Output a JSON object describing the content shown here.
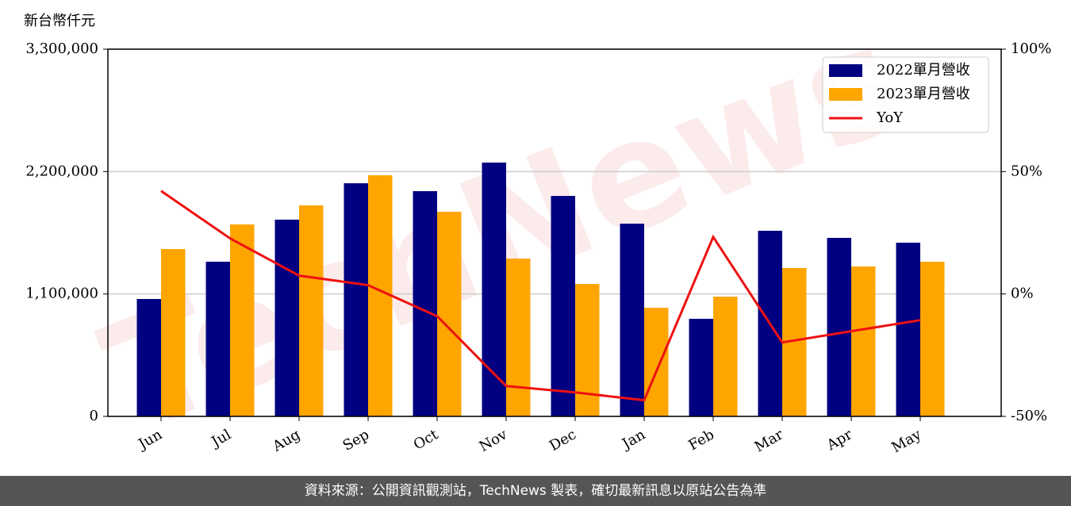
{
  "chart_data": {
    "type": "bar-line",
    "ylabel": "新台幣仟元",
    "watermark": "TechNews",
    "categories": [
      "Jun",
      "Jul",
      "Aug",
      "Sep",
      "Oct",
      "Nov",
      "Dec",
      "Jan",
      "Feb",
      "Mar",
      "Apr",
      "May"
    ],
    "series": [
      {
        "name": "2022單月營收",
        "color": "#000080",
        "type": "bar",
        "values": [
          1055000,
          1390000,
          1768000,
          2095000,
          2024000,
          2281000,
          1981000,
          1732000,
          877000,
          1668000,
          1604000,
          1561000
        ]
      },
      {
        "name": "2023單月營收",
        "color": "#ffa500",
        "type": "bar",
        "values": [
          1504000,
          1725000,
          1896000,
          2167000,
          1839000,
          1418000,
          1190000,
          976000,
          1076000,
          1333000,
          1347000,
          1390000
        ]
      },
      {
        "name": "YoY",
        "color": "#ee1111",
        "type": "line",
        "axis": "y2",
        "values": [
          42.1,
          22.7,
          7.5,
          3.6,
          -9.1,
          -37.6,
          -40.2,
          -43.4,
          23.3,
          -19.8,
          -15.2,
          -10.7
        ]
      }
    ],
    "ylim": [
      0,
      3300000
    ],
    "yticks": [
      0,
      {
        "value": 1100000,
        "label": "1,100,000"
      },
      {
        "value": 2200000,
        "label": "2,200,000"
      },
      {
        "value": 3300000,
        "label": "3,300,000"
      }
    ],
    "y2lim": [
      -50,
      100
    ],
    "y2ticks": [
      {
        "value": -50,
        "label": "-50%"
      },
      {
        "value": 0,
        "label": "0%"
      },
      {
        "value": 50,
        "label": "50%"
      },
      {
        "value": 100,
        "label": "100%"
      }
    ],
    "grid": true,
    "legend": "upper right",
    "footer": "資料來源：公開資訊觀測站，TechNews 製表，確切最新訊息以原站公告為準"
  }
}
